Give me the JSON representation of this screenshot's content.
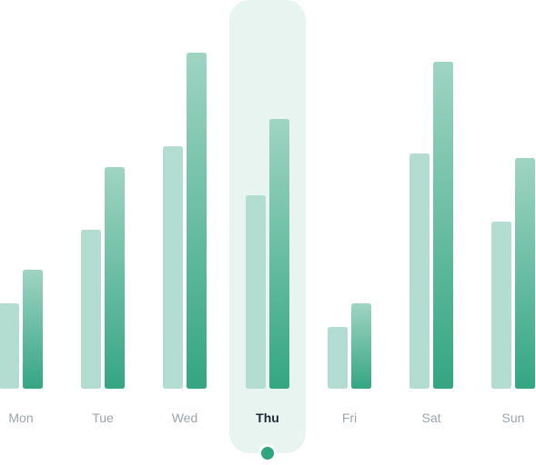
{
  "chart_data": {
    "type": "bar",
    "categories": [
      "Mon",
      "Tue",
      "Wed",
      "Thu",
      "Fri",
      "Sat",
      "Sun"
    ],
    "series": [
      {
        "values": [
          94,
          175,
          267,
          213,
          68,
          259,
          184
        ]
      },
      {
        "values": [
          131,
          244,
          370,
          297,
          94,
          360,
          254
        ]
      }
    ],
    "ylim": [
      0,
      430
    ],
    "selected_category": "Thu",
    "colors": {
      "series_light": "#b2ddd0",
      "series_gradient_top": "#9fd4c3",
      "series_gradient_bottom": "#34a681",
      "highlight_bg": "#e8f4f0",
      "highlight_dot": "#2ea57d",
      "label": "#9ca3af",
      "label_selected": "#1f2937"
    }
  }
}
